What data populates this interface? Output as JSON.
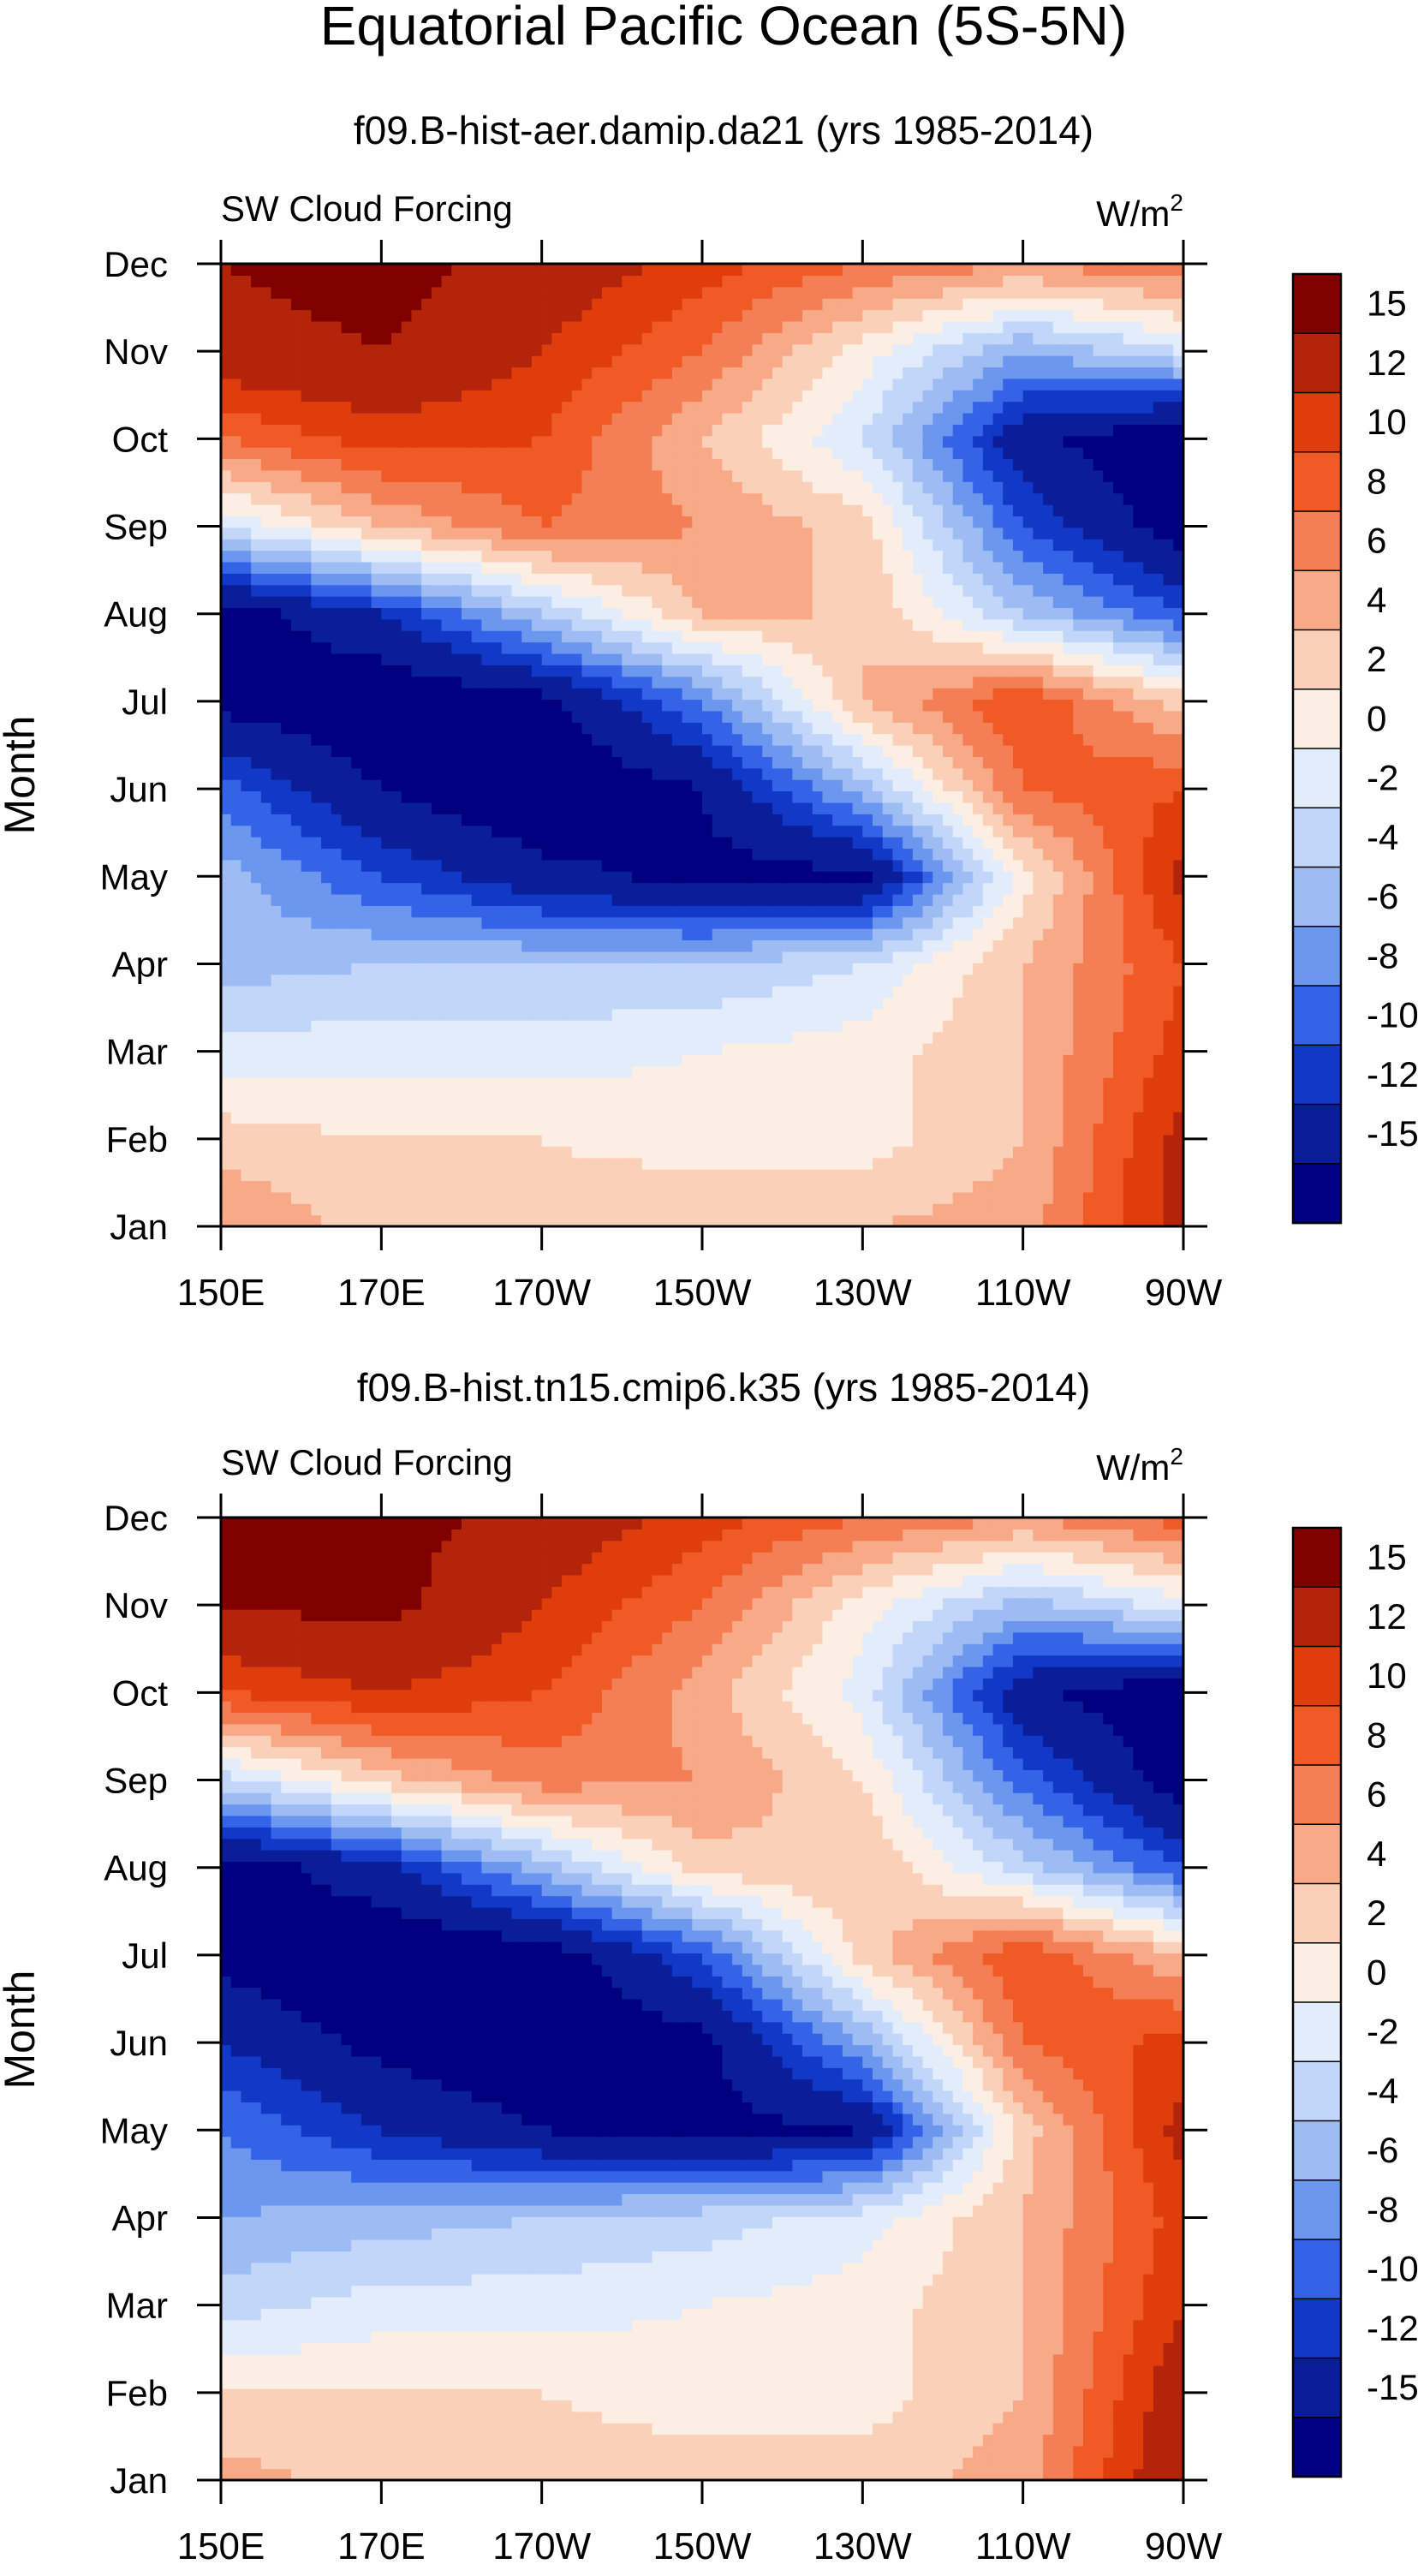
{
  "figure": {
    "title": "Equatorial Pacific Ocean (5S-5N)"
  },
  "colorbar": {
    "levels": [
      -15,
      -12,
      -10,
      -8,
      -6,
      -4,
      -2,
      0,
      2,
      4,
      6,
      8,
      10,
      12,
      15
    ],
    "labels": [
      "15",
      "12",
      "10",
      "8",
      "6",
      "4",
      "2",
      "0",
      "-2",
      "-4",
      "-6",
      "-8",
      "-10",
      "-12",
      "-15"
    ],
    "colors_high_to_low": [
      "#800000",
      "#b3240a",
      "#e03d0c",
      "#f05a26",
      "#f47f54",
      "#f7a988",
      "#fbd0b8",
      "#fdeee3",
      "#e2ecfb",
      "#c1d6f9",
      "#9ebcf4",
      "#6c97ee",
      "#3563e8",
      "#1238c8",
      "#0a1e9a",
      "#000080"
    ]
  },
  "chart_data": [
    {
      "type": "heatmap",
      "title": "f09.B-hist-aer.damip.da21 (yrs 1985-2014)",
      "left_string": "SW Cloud Forcing",
      "units": "W/m",
      "units_sup": "2",
      "ylabel": "Month",
      "x": [
        "150E",
        "170E",
        "170W",
        "150W",
        "130W",
        "110W",
        "90W"
      ],
      "y": [
        "Jan",
        "Feb",
        "Mar",
        "Apr",
        "May",
        "Jun",
        "Jul",
        "Aug",
        "Sep",
        "Oct",
        "Nov",
        "Dec"
      ],
      "values": [
        [
          6,
          3,
          3,
          4,
          4,
          5,
          13
        ],
        [
          3,
          2,
          2,
          1,
          1,
          4,
          13
        ],
        [
          -1,
          -1,
          -1,
          0,
          1,
          4,
          11
        ],
        [
          -5,
          -4,
          -4,
          -4,
          -2,
          4,
          10
        ],
        [
          -5,
          -10,
          -14,
          -16,
          -16,
          1,
          13
        ],
        [
          -9,
          -15,
          -18,
          -15,
          -5,
          8,
          10
        ],
        [
          -16,
          -18,
          -16,
          -8,
          4,
          10,
          3
        ],
        [
          -17,
          -12,
          -4,
          4,
          4,
          -4,
          -10
        ],
        [
          -2,
          4,
          8,
          6,
          3,
          -10,
          -17
        ],
        [
          8,
          11,
          10,
          4,
          -2,
          -14,
          -18
        ],
        [
          14,
          15,
          12,
          8,
          1,
          -6,
          -2
        ],
        [
          15,
          16,
          14,
          11,
          8,
          6,
          8
        ]
      ],
      "zlim": [
        -15,
        15
      ]
    },
    {
      "type": "heatmap",
      "title": "f09.B-hist.tn15.cmip6.k35 (yrs 1985-2014)",
      "left_string": "SW Cloud Forcing",
      "units": "W/m",
      "units_sup": "2",
      "ylabel": "Month",
      "x": [
        "150E",
        "170E",
        "170W",
        "150W",
        "130W",
        "110W",
        "90W"
      ],
      "y": [
        "Jan",
        "Feb",
        "Mar",
        "Apr",
        "May",
        "Jun",
        "Jul",
        "Aug",
        "Sep",
        "Oct",
        "Nov",
        "Dec"
      ],
      "values": [
        [
          5,
          3,
          3,
          3,
          3,
          5,
          15
        ],
        [
          2,
          2,
          2,
          1,
          1,
          4,
          14
        ],
        [
          -3,
          -1,
          -1,
          0,
          1,
          4,
          12
        ],
        [
          -6,
          -5,
          -4,
          -3,
          -1,
          4,
          11
        ],
        [
          -8,
          -12,
          -15,
          -16,
          -15,
          3,
          13
        ],
        [
          -12,
          -16,
          -18,
          -16,
          -6,
          8,
          11
        ],
        [
          -16,
          -18,
          -17,
          -10,
          3,
          10,
          4
        ],
        [
          -17,
          -13,
          -5,
          3,
          4,
          -3,
          -10
        ],
        [
          -3,
          3,
          7,
          6,
          2,
          -9,
          -17
        ],
        [
          10,
          12,
          10,
          5,
          -1,
          -14,
          -18
        ],
        [
          15,
          16,
          12,
          8,
          1,
          -5,
          -1
        ],
        [
          16,
          16,
          14,
          11,
          8,
          6,
          9
        ]
      ],
      "zlim": [
        -15,
        15
      ]
    }
  ]
}
